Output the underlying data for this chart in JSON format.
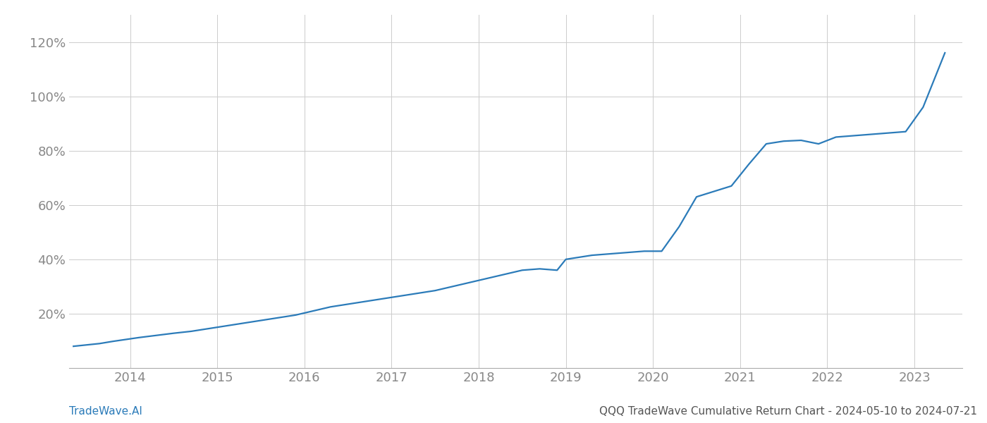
{
  "title": "QQQ TradeWave Cumulative Return Chart - 2024-05-10 to 2024-07-21",
  "watermark": "TradeWave.AI",
  "line_color": "#2b7bb9",
  "background_color": "#ffffff",
  "grid_color": "#cccccc",
  "x_years": [
    2014,
    2015,
    2016,
    2017,
    2018,
    2019,
    2020,
    2021,
    2022,
    2023
  ],
  "x_data": [
    2013.35,
    2013.5,
    2013.65,
    2013.8,
    2013.95,
    2014.1,
    2014.3,
    2014.5,
    2014.7,
    2014.9,
    2015.1,
    2015.3,
    2015.5,
    2015.7,
    2015.9,
    2016.1,
    2016.3,
    2016.5,
    2016.7,
    2016.9,
    2017.1,
    2017.3,
    2017.5,
    2017.7,
    2017.9,
    2018.1,
    2018.3,
    2018.5,
    2018.7,
    2018.9,
    2019.0,
    2019.1,
    2019.3,
    2019.5,
    2019.7,
    2019.9,
    2020.1,
    2020.3,
    2020.5,
    2020.7,
    2020.9,
    2021.1,
    2021.3,
    2021.5,
    2021.7,
    2021.9,
    2022.1,
    2022.3,
    2022.5,
    2022.7,
    2022.9,
    2023.1,
    2023.35
  ],
  "y_data": [
    8.0,
    8.5,
    9.0,
    9.8,
    10.5,
    11.2,
    12.0,
    12.8,
    13.5,
    14.5,
    15.5,
    16.5,
    17.5,
    18.5,
    19.5,
    21.0,
    22.5,
    23.5,
    24.5,
    25.5,
    26.5,
    27.5,
    28.5,
    30.0,
    31.5,
    33.0,
    34.5,
    36.0,
    36.5,
    36.0,
    40.0,
    40.5,
    41.5,
    42.0,
    42.5,
    43.0,
    43.0,
    52.0,
    63.0,
    65.0,
    67.0,
    75.0,
    82.5,
    83.5,
    83.8,
    82.5,
    85.0,
    85.5,
    86.0,
    86.5,
    87.0,
    96.0,
    116.0
  ],
  "ylim": [
    0,
    130
  ],
  "yticks": [
    20,
    40,
    60,
    80,
    100,
    120
  ],
  "xlim": [
    2013.3,
    2023.55
  ],
  "title_fontsize": 11,
  "watermark_fontsize": 11,
  "tick_fontsize": 13,
  "line_width": 1.6,
  "title_color": "#555555",
  "watermark_color": "#2b7bb9",
  "tick_color": "#888888",
  "axis_color": "#aaaaaa"
}
